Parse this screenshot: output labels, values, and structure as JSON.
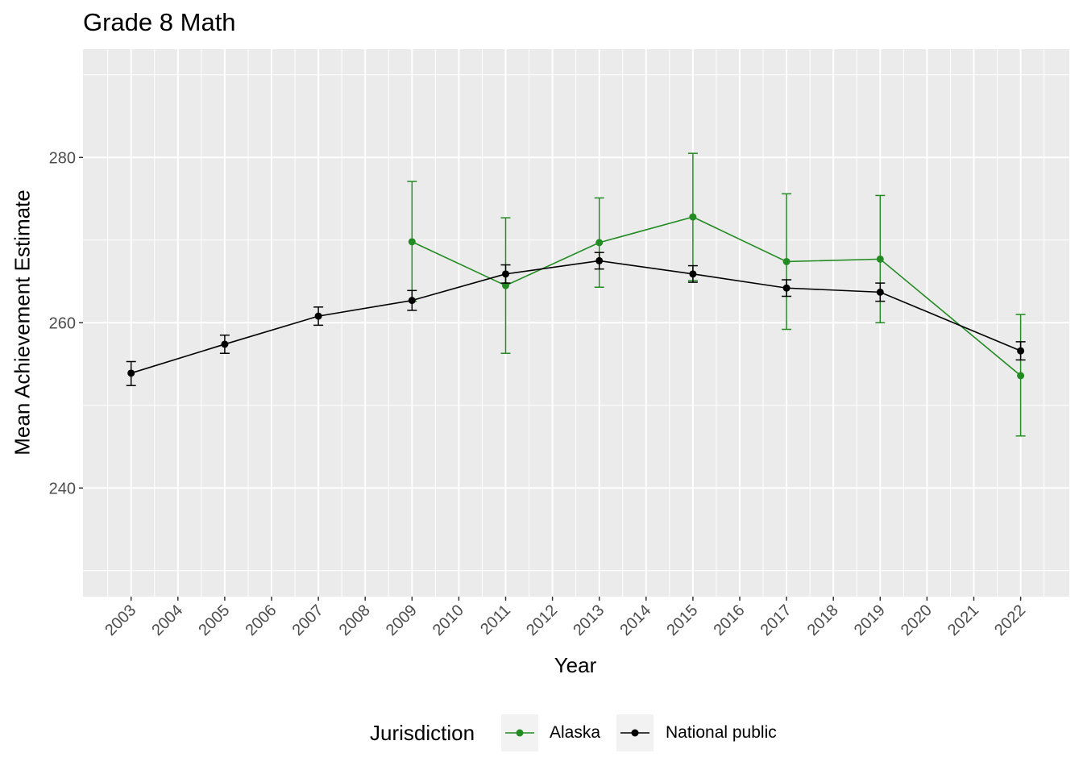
{
  "chart_data": {
    "type": "line",
    "title": "Grade 8 Math",
    "xlabel": "Year",
    "ylabel": "Mean Achievement Estimate",
    "x_categories": [
      "2003",
      "2004",
      "2005",
      "2006",
      "2007",
      "2008",
      "2009",
      "2010",
      "2011",
      "2012",
      "2013",
      "2014",
      "2015",
      "2016",
      "2017",
      "2018",
      "2019",
      "2020",
      "2021",
      "2022"
    ],
    "ylim": [
      227,
      292
    ],
    "yticks": [
      240,
      260,
      280
    ],
    "grid": true,
    "error_bars": true,
    "legend": {
      "title": "Jurisdiction",
      "position": "bottom"
    },
    "series": [
      {
        "name": "Alaska",
        "color": "#228B22",
        "points": [
          {
            "x": "2009",
            "y": 269.8,
            "lower": 262.6,
            "upper": 277.1
          },
          {
            "x": "2011",
            "y": 264.5,
            "lower": 256.3,
            "upper": 272.7
          },
          {
            "x": "2013",
            "y": 269.7,
            "lower": 264.3,
            "upper": 275.1
          },
          {
            "x": "2015",
            "y": 272.8,
            "lower": 265.1,
            "upper": 280.5
          },
          {
            "x": "2017",
            "y": 267.4,
            "lower": 259.2,
            "upper": 275.6
          },
          {
            "x": "2019",
            "y": 267.7,
            "lower": 260.0,
            "upper": 275.4
          },
          {
            "x": "2022",
            "y": 253.6,
            "lower": 246.3,
            "upper": 261.0
          }
        ]
      },
      {
        "name": "National public",
        "color": "#000000",
        "points": [
          {
            "x": "2003",
            "y": 253.9,
            "lower": 252.4,
            "upper": 255.3
          },
          {
            "x": "2005",
            "y": 257.4,
            "lower": 256.3,
            "upper": 258.5
          },
          {
            "x": "2007",
            "y": 260.8,
            "lower": 259.7,
            "upper": 261.9
          },
          {
            "x": "2009",
            "y": 262.7,
            "lower": 261.5,
            "upper": 263.9
          },
          {
            "x": "2011",
            "y": 265.9,
            "lower": 264.8,
            "upper": 267.0
          },
          {
            "x": "2013",
            "y": 267.5,
            "lower": 266.5,
            "upper": 268.5
          },
          {
            "x": "2015",
            "y": 265.9,
            "lower": 264.9,
            "upper": 266.9
          },
          {
            "x": "2017",
            "y": 264.2,
            "lower": 263.2,
            "upper": 265.2
          },
          {
            "x": "2019",
            "y": 263.7,
            "lower": 262.6,
            "upper": 264.8
          },
          {
            "x": "2022",
            "y": 256.6,
            "lower": 255.5,
            "upper": 257.7
          }
        ]
      }
    ]
  }
}
